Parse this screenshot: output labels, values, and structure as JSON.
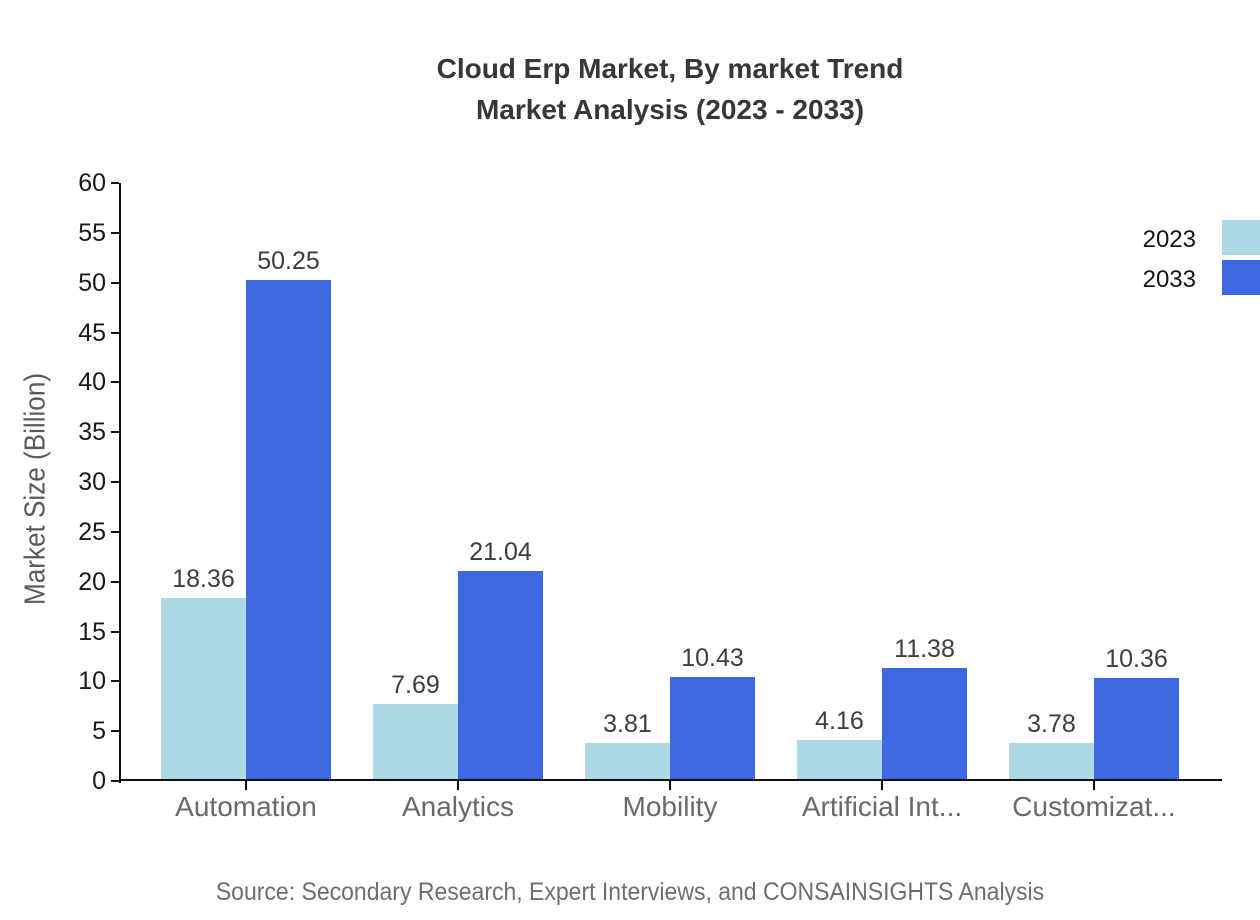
{
  "title": {
    "line1": "Cloud Erp Market, By market Trend",
    "line2": "Market Analysis (2023 - 2033)"
  },
  "source": "Source: Secondary Research, Expert Interviews, and CONSAINSIGHTS Analysis",
  "colors": {
    "series_2023": "#ADD8E6",
    "series_2033": "#3E68E0",
    "axis": "#111111"
  },
  "chart_data": {
    "type": "bar",
    "title": "Cloud Erp Market, By market Trend Market Analysis (2023 - 2033)",
    "categories": [
      "Automation",
      "Analytics",
      "Mobility",
      "Artificial Int...",
      "Customizat..."
    ],
    "series": [
      {
        "name": "2023",
        "color": "#ADD8E6",
        "values": [
          18.36,
          7.69,
          3.81,
          4.16,
          3.78
        ]
      },
      {
        "name": "2033",
        "color": "#3E68E0",
        "values": [
          50.25,
          21.04,
          10.43,
          11.38,
          10.36
        ]
      }
    ],
    "xlabel": "",
    "ylabel": "Market Size (Billion)",
    "ylim": [
      0,
      60
    ],
    "ytick_step": 5,
    "grid": false,
    "legend_position": "top-right",
    "bar_value_labels": true
  }
}
